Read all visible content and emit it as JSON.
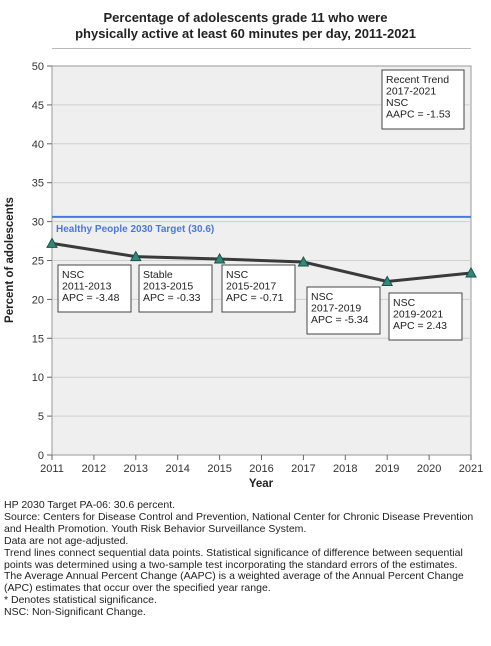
{
  "title_line1": "Percentage of adolescents grade 11 who were",
  "title_line2": "physically active at least 60 minutes per day, 2011-2021",
  "chart_data": {
    "type": "line",
    "title": "Percentage of adolescents grade 11 who were physically active at least 60 minutes per day, 2011-2021",
    "xlabel": "Year",
    "ylabel": "Percent of adolescents",
    "xlim": [
      2011,
      2021
    ],
    "ylim": [
      0,
      50
    ],
    "x_ticks": [
      "2011",
      "2012",
      "2013",
      "2014",
      "2015",
      "2016",
      "2017",
      "2018",
      "2019",
      "2020",
      "2021"
    ],
    "y_ticks": [
      "0",
      "5",
      "10",
      "15",
      "20",
      "25",
      "30",
      "35",
      "40",
      "45",
      "50"
    ],
    "grid": "horizontal",
    "series": [
      {
        "x": [
          2011,
          2013,
          2015,
          2017,
          2019,
          2021
        ],
        "values": [
          27.2,
          25.5,
          25.2,
          24.8,
          22.3,
          23.4
        ],
        "color": "#3a3a3a",
        "marker_color": "#2e8b7a"
      }
    ],
    "target": {
      "value": 30.6,
      "label": "Healthy People 2030 Target (30.6)",
      "color": "#4a78e0"
    },
    "annotations": [
      {
        "lines": [
          "NSC",
          "2011-2013",
          "APC = -3.48"
        ]
      },
      {
        "lines": [
          "Stable",
          "2013-2015",
          "APC = -0.33"
        ]
      },
      {
        "lines": [
          "NSC",
          "2015-2017",
          "APC = -0.71"
        ]
      },
      {
        "lines": [
          "NSC",
          "2017-2019",
          "APC = -5.34"
        ]
      },
      {
        "lines": [
          "NSC",
          "2019-2021",
          "APC =  2.43"
        ]
      },
      {
        "lines": [
          "Recent Trend",
          "2017-2021",
          "NSC",
          "AAPC = -1.53"
        ]
      }
    ]
  },
  "notes": [
    "HP 2030 Target PA-06: 30.6 percent.",
    "Source: Centers for Disease Control and Prevention, National Center for Chronic Disease Prevention and Health Promotion. Youth Risk Behavior Surveillance System.",
    "Data are not age-adjusted.",
    "Trend lines connect sequential data points. Statistical significance of difference between sequential points was determined using a two-sample test incorporating the standard errors of the estimates.",
    "The Average Annual Percent Change (AAPC) is a weighted average of the Annual Percent Change (APC) estimates that occur over the specified year range.",
    "* Denotes statistical significance.",
    "NSC: Non-Significant Change."
  ]
}
